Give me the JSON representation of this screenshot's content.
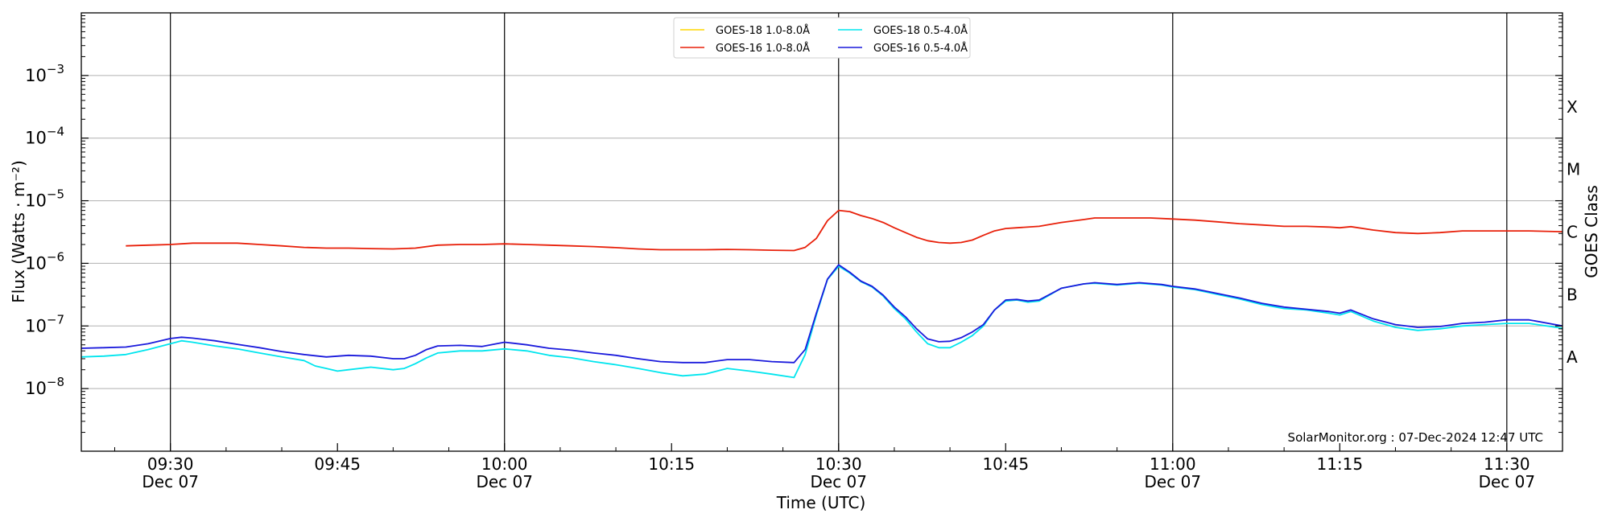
{
  "chart_data": {
    "type": "line",
    "xlabel": "Time (UTC)",
    "ylabel": "Flux (Watts · m⁻²)",
    "ylabel_right": "GOES Class",
    "yscale": "log",
    "ylim": [
      1e-09,
      0.01
    ],
    "xlim": [
      "09:22",
      "11:35"
    ],
    "y_ticks": [
      {
        "value": 1e-08,
        "base": "10",
        "exp": "−8"
      },
      {
        "value": 1e-07,
        "base": "10",
        "exp": "−7"
      },
      {
        "value": 1e-06,
        "base": "10",
        "exp": "−6"
      },
      {
        "value": 1e-05,
        "base": "10",
        "exp": "−5"
      },
      {
        "value": 0.0001,
        "base": "10",
        "exp": "−4"
      },
      {
        "value": 0.001,
        "base": "10",
        "exp": "−3"
      }
    ],
    "x_ticks": [
      {
        "time": "09:30",
        "label": "09:30",
        "date": "Dec 07"
      },
      {
        "time": "09:45",
        "label": "09:45",
        "date": ""
      },
      {
        "time": "10:00",
        "label": "10:00",
        "date": "Dec 07"
      },
      {
        "time": "10:15",
        "label": "10:15",
        "date": ""
      },
      {
        "time": "10:30",
        "label": "10:30",
        "date": "Dec 07"
      },
      {
        "time": "10:45",
        "label": "10:45",
        "date": ""
      },
      {
        "time": "11:00",
        "label": "11:00",
        "date": "Dec 07"
      },
      {
        "time": "11:15",
        "label": "11:15",
        "date": ""
      },
      {
        "time": "11:30",
        "label": "11:30",
        "date": "Dec 07"
      }
    ],
    "vertical_lines": [
      "09:30",
      "10:00",
      "10:30",
      "11:00",
      "11:30"
    ],
    "classes": [
      {
        "label": "A",
        "value": 3.16e-08
      },
      {
        "label": "B",
        "value": 3.16e-07
      },
      {
        "label": "C",
        "value": 3.16e-06
      },
      {
        "label": "M",
        "value": 3.16e-05
      },
      {
        "label": "X",
        "value": 0.000316
      }
    ],
    "grid": "horizontal",
    "legend_position": "top-center",
    "annotation": "SolarMonitor.org : 07-Dec-2024 12:47 UTC",
    "series": [
      {
        "name": "GOES-18 1.0-8.0Å",
        "color": "#ffd700",
        "points": []
      },
      {
        "name": "GOES-16 1.0-8.0Å",
        "color": "#e8200a",
        "points": [
          [
            "09:26",
            1.9e-06
          ],
          [
            "09:28",
            1.95e-06
          ],
          [
            "09:30",
            2e-06
          ],
          [
            "09:32",
            2.1e-06
          ],
          [
            "09:34",
            2.1e-06
          ],
          [
            "09:36",
            2.1e-06
          ],
          [
            "09:38",
            2e-06
          ],
          [
            "09:40",
            1.9e-06
          ],
          [
            "09:42",
            1.8e-06
          ],
          [
            "09:44",
            1.75e-06
          ],
          [
            "09:46",
            1.75e-06
          ],
          [
            "09:48",
            1.72e-06
          ],
          [
            "09:50",
            1.7e-06
          ],
          [
            "09:52",
            1.75e-06
          ],
          [
            "09:54",
            1.95e-06
          ],
          [
            "09:56",
            2e-06
          ],
          [
            "09:58",
            2e-06
          ],
          [
            "10:00",
            2.05e-06
          ],
          [
            "10:02",
            2e-06
          ],
          [
            "10:04",
            1.95e-06
          ],
          [
            "10:06",
            1.9e-06
          ],
          [
            "10:08",
            1.85e-06
          ],
          [
            "10:10",
            1.78e-06
          ],
          [
            "10:12",
            1.7e-06
          ],
          [
            "10:14",
            1.65e-06
          ],
          [
            "10:16",
            1.65e-06
          ],
          [
            "10:18",
            1.65e-06
          ],
          [
            "10:20",
            1.67e-06
          ],
          [
            "10:22",
            1.65e-06
          ],
          [
            "10:24",
            1.62e-06
          ],
          [
            "10:26",
            1.6e-06
          ],
          [
            "10:27",
            1.8e-06
          ],
          [
            "10:28",
            2.5e-06
          ],
          [
            "10:29",
            4.8e-06
          ],
          [
            "10:30",
            7e-06
          ],
          [
            "10:31",
            6.7e-06
          ],
          [
            "10:32",
            5.8e-06
          ],
          [
            "10:33",
            5.2e-06
          ],
          [
            "10:34",
            4.5e-06
          ],
          [
            "10:35",
            3.7e-06
          ],
          [
            "10:36",
            3.1e-06
          ],
          [
            "10:37",
            2.6e-06
          ],
          [
            "10:38",
            2.3e-06
          ],
          [
            "10:39",
            2.15e-06
          ],
          [
            "10:40",
            2.1e-06
          ],
          [
            "10:41",
            2.15e-06
          ],
          [
            "10:42",
            2.35e-06
          ],
          [
            "10:43",
            2.8e-06
          ],
          [
            "10:44",
            3.3e-06
          ],
          [
            "10:45",
            3.6e-06
          ],
          [
            "10:46",
            3.7e-06
          ],
          [
            "10:48",
            3.9e-06
          ],
          [
            "10:50",
            4.5e-06
          ],
          [
            "10:52",
            5e-06
          ],
          [
            "10:53",
            5.3e-06
          ],
          [
            "10:56",
            5.3e-06
          ],
          [
            "10:58",
            5.3e-06
          ],
          [
            "11:00",
            5.1e-06
          ],
          [
            "11:02",
            4.9e-06
          ],
          [
            "11:04",
            4.6e-06
          ],
          [
            "11:06",
            4.3e-06
          ],
          [
            "11:08",
            4.1e-06
          ],
          [
            "11:10",
            3.9e-06
          ],
          [
            "11:12",
            3.9e-06
          ],
          [
            "11:14",
            3.8e-06
          ],
          [
            "11:15",
            3.7e-06
          ],
          [
            "11:16",
            3.85e-06
          ],
          [
            "11:18",
            3.4e-06
          ],
          [
            "11:20",
            3.1e-06
          ],
          [
            "11:22",
            3e-06
          ],
          [
            "11:24",
            3.1e-06
          ],
          [
            "11:26",
            3.3e-06
          ],
          [
            "11:28",
            3.3e-06
          ],
          [
            "11:30",
            3.3e-06
          ],
          [
            "11:32",
            3.3e-06
          ],
          [
            "11:35",
            3.2e-06
          ]
        ]
      },
      {
        "name": "GOES-18 0.5-4.0Å",
        "color": "#00e5ee",
        "points": [
          [
            "09:22",
            3.2e-08
          ],
          [
            "09:24",
            3.3e-08
          ],
          [
            "09:26",
            3.5e-08
          ],
          [
            "09:28",
            4.2e-08
          ],
          [
            "09:30",
            5.2e-08
          ],
          [
            "09:31",
            5.8e-08
          ],
          [
            "09:32",
            5.5e-08
          ],
          [
            "09:34",
            4.8e-08
          ],
          [
            "09:36",
            4.3e-08
          ],
          [
            "09:38",
            3.7e-08
          ],
          [
            "09:40",
            3.2e-08
          ],
          [
            "09:42",
            2.8e-08
          ],
          [
            "09:43",
            2.3e-08
          ],
          [
            "09:44",
            2.1e-08
          ],
          [
            "09:45",
            1.9e-08
          ],
          [
            "09:46",
            2e-08
          ],
          [
            "09:48",
            2.2e-08
          ],
          [
            "09:50",
            2e-08
          ],
          [
            "09:51",
            2.1e-08
          ],
          [
            "09:52",
            2.5e-08
          ],
          [
            "09:53",
            3.1e-08
          ],
          [
            "09:54",
            3.7e-08
          ],
          [
            "09:56",
            4e-08
          ],
          [
            "09:58",
            4e-08
          ],
          [
            "10:00",
            4.3e-08
          ],
          [
            "10:02",
            4e-08
          ],
          [
            "10:04",
            3.4e-08
          ],
          [
            "10:06",
            3.1e-08
          ],
          [
            "10:08",
            2.7e-08
          ],
          [
            "10:10",
            2.4e-08
          ],
          [
            "10:12",
            2.1e-08
          ],
          [
            "10:14",
            1.8e-08
          ],
          [
            "10:16",
            1.6e-08
          ],
          [
            "10:18",
            1.7e-08
          ],
          [
            "10:20",
            2.1e-08
          ],
          [
            "10:22",
            1.9e-08
          ],
          [
            "10:24",
            1.7e-08
          ],
          [
            "10:26",
            1.5e-08
          ],
          [
            "10:27",
            3.5e-08
          ],
          [
            "10:28",
            1.5e-07
          ],
          [
            "10:29",
            5.5e-07
          ],
          [
            "10:30",
            9e-07
          ],
          [
            "10:31",
            7e-07
          ],
          [
            "10:32",
            5.1e-07
          ],
          [
            "10:33",
            4.2e-07
          ],
          [
            "10:34",
            3e-07
          ],
          [
            "10:35",
            1.9e-07
          ],
          [
            "10:36",
            1.3e-07
          ],
          [
            "10:37",
            8e-08
          ],
          [
            "10:38",
            5.2e-08
          ],
          [
            "10:39",
            4.5e-08
          ],
          [
            "10:40",
            4.5e-08
          ],
          [
            "10:41",
            5.5e-08
          ],
          [
            "10:42",
            7e-08
          ],
          [
            "10:43",
            1e-07
          ],
          [
            "10:44",
            1.8e-07
          ],
          [
            "10:45",
            2.5e-07
          ],
          [
            "10:46",
            2.6e-07
          ],
          [
            "10:47",
            2.4e-07
          ],
          [
            "10:48",
            2.5e-07
          ],
          [
            "10:50",
            4e-07
          ],
          [
            "10:52",
            4.7e-07
          ],
          [
            "10:53",
            4.8e-07
          ],
          [
            "10:55",
            4.5e-07
          ],
          [
            "10:57",
            4.8e-07
          ],
          [
            "10:59",
            4.5e-07
          ],
          [
            "11:00",
            4.2e-07
          ],
          [
            "11:02",
            3.8e-07
          ],
          [
            "11:04",
            3.2e-07
          ],
          [
            "11:06",
            2.7e-07
          ],
          [
            "11:08",
            2.2e-07
          ],
          [
            "11:10",
            1.9e-07
          ],
          [
            "11:12",
            1.8e-07
          ],
          [
            "11:14",
            1.6e-07
          ],
          [
            "11:15",
            1.5e-07
          ],
          [
            "11:16",
            1.7e-07
          ],
          [
            "11:18",
            1.2e-07
          ],
          [
            "11:20",
            9.5e-08
          ],
          [
            "11:22",
            8.5e-08
          ],
          [
            "11:24",
            9e-08
          ],
          [
            "11:26",
            1e-07
          ],
          [
            "11:28",
            1.05e-07
          ],
          [
            "11:30",
            1.1e-07
          ],
          [
            "11:32",
            1.1e-07
          ],
          [
            "11:35",
            9.2e-08
          ]
        ]
      },
      {
        "name": "GOES-16 0.5-4.0Å",
        "color": "#1a1adc",
        "points": [
          [
            "09:22",
            4.4e-08
          ],
          [
            "09:24",
            4.5e-08
          ],
          [
            "09:26",
            4.6e-08
          ],
          [
            "09:28",
            5.2e-08
          ],
          [
            "09:30",
            6.3e-08
          ],
          [
            "09:31",
            6.6e-08
          ],
          [
            "09:32",
            6.4e-08
          ],
          [
            "09:34",
            5.8e-08
          ],
          [
            "09:36",
            5.1e-08
          ],
          [
            "09:38",
            4.5e-08
          ],
          [
            "09:40",
            3.9e-08
          ],
          [
            "09:42",
            3.5e-08
          ],
          [
            "09:44",
            3.2e-08
          ],
          [
            "09:46",
            3.4e-08
          ],
          [
            "09:48",
            3.3e-08
          ],
          [
            "09:50",
            3e-08
          ],
          [
            "09:51",
            3e-08
          ],
          [
            "09:52",
            3.4e-08
          ],
          [
            "09:53",
            4.2e-08
          ],
          [
            "09:54",
            4.8e-08
          ],
          [
            "09:56",
            4.9e-08
          ],
          [
            "09:58",
            4.7e-08
          ],
          [
            "10:00",
            5.5e-08
          ],
          [
            "10:02",
            5e-08
          ],
          [
            "10:04",
            4.4e-08
          ],
          [
            "10:06",
            4.1e-08
          ],
          [
            "10:08",
            3.7e-08
          ],
          [
            "10:10",
            3.4e-08
          ],
          [
            "10:12",
            3e-08
          ],
          [
            "10:14",
            2.7e-08
          ],
          [
            "10:16",
            2.6e-08
          ],
          [
            "10:18",
            2.6e-08
          ],
          [
            "10:20",
            2.9e-08
          ],
          [
            "10:22",
            2.9e-08
          ],
          [
            "10:24",
            2.7e-08
          ],
          [
            "10:26",
            2.6e-08
          ],
          [
            "10:27",
            4.2e-08
          ],
          [
            "10:28",
            1.6e-07
          ],
          [
            "10:29",
            5.6e-07
          ],
          [
            "10:30",
            9.5e-07
          ],
          [
            "10:31",
            7.2e-07
          ],
          [
            "10:32",
            5.2e-07
          ],
          [
            "10:33",
            4.3e-07
          ],
          [
            "10:34",
            3.1e-07
          ],
          [
            "10:35",
            2e-07
          ],
          [
            "10:36",
            1.4e-07
          ],
          [
            "10:37",
            9e-08
          ],
          [
            "10:38",
            6.2e-08
          ],
          [
            "10:39",
            5.6e-08
          ],
          [
            "10:40",
            5.7e-08
          ],
          [
            "10:41",
            6.5e-08
          ],
          [
            "10:42",
            8e-08
          ],
          [
            "10:43",
            1.05e-07
          ],
          [
            "10:44",
            1.8e-07
          ],
          [
            "10:45",
            2.6e-07
          ],
          [
            "10:46",
            2.65e-07
          ],
          [
            "10:47",
            2.5e-07
          ],
          [
            "10:48",
            2.6e-07
          ],
          [
            "10:50",
            4e-07
          ],
          [
            "10:52",
            4.7e-07
          ],
          [
            "10:53",
            4.9e-07
          ],
          [
            "10:55",
            4.6e-07
          ],
          [
            "10:57",
            4.9e-07
          ],
          [
            "10:59",
            4.6e-07
          ],
          [
            "11:00",
            4.3e-07
          ],
          [
            "11:02",
            3.9e-07
          ],
          [
            "11:04",
            3.3e-07
          ],
          [
            "11:06",
            2.8e-07
          ],
          [
            "11:08",
            2.3e-07
          ],
          [
            "11:10",
            2e-07
          ],
          [
            "11:12",
            1.85e-07
          ],
          [
            "11:14",
            1.7e-07
          ],
          [
            "11:15",
            1.6e-07
          ],
          [
            "11:16",
            1.8e-07
          ],
          [
            "11:18",
            1.3e-07
          ],
          [
            "11:20",
            1.05e-07
          ],
          [
            "11:22",
            9.5e-08
          ],
          [
            "11:24",
            9.8e-08
          ],
          [
            "11:26",
            1.1e-07
          ],
          [
            "11:28",
            1.15e-07
          ],
          [
            "11:30",
            1.25e-07
          ],
          [
            "11:32",
            1.25e-07
          ],
          [
            "11:35",
            1e-07
          ]
        ]
      }
    ]
  }
}
